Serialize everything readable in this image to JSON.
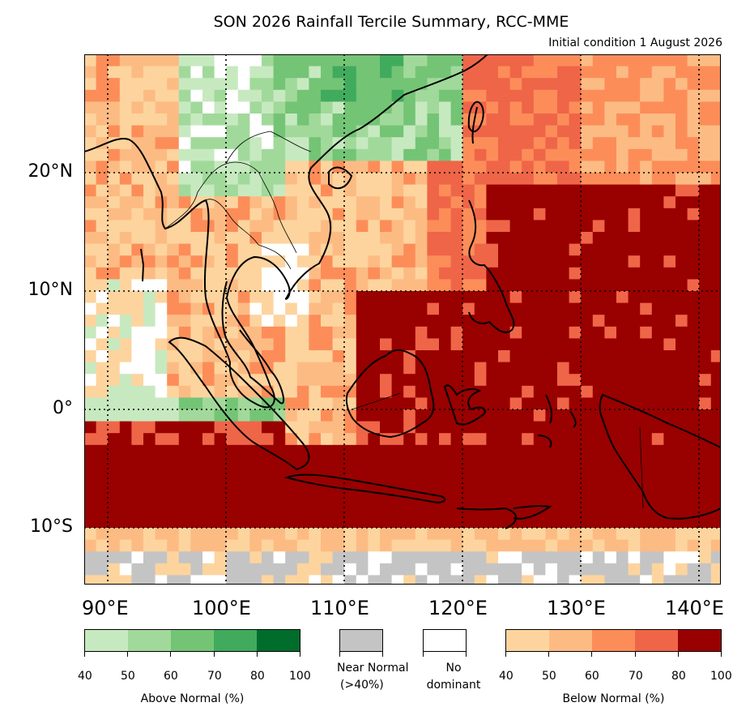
{
  "title": "SON 2026 Rainfall Tercile Summary, RCC-MME",
  "subtitle": "Initial condition 1 August 2026",
  "axes": {
    "lat_labels": [
      "20°N",
      "10°N",
      "0°",
      "10°S"
    ],
    "lon_labels": [
      "90°E",
      "100°E",
      "110°E",
      "120°E",
      "130°E",
      "140°E"
    ]
  },
  "legend": {
    "above_normal": {
      "caption": "Above Normal (%)",
      "ticks": [
        "40",
        "50",
        "60",
        "70",
        "80",
        "100"
      ],
      "colors": [
        "#c7e9c0",
        "#a1d99b",
        "#74c476",
        "#41ab5d",
        "#006d2c"
      ]
    },
    "near_normal": {
      "caption_line1": "Near Normal",
      "caption_line2": "(>40%)",
      "color": "#c4c4c4"
    },
    "no_dominant": {
      "caption_line1": "No",
      "caption_line2": "dominant",
      "color": "#ffffff"
    },
    "below_normal": {
      "caption": "Below Normal (%)",
      "ticks": [
        "40",
        "50",
        "60",
        "70",
        "80",
        "100"
      ],
      "colors": [
        "#fdd49e",
        "#fdbb84",
        "#fc8d59",
        "#ef6548",
        "#990000"
      ]
    }
  }
}
